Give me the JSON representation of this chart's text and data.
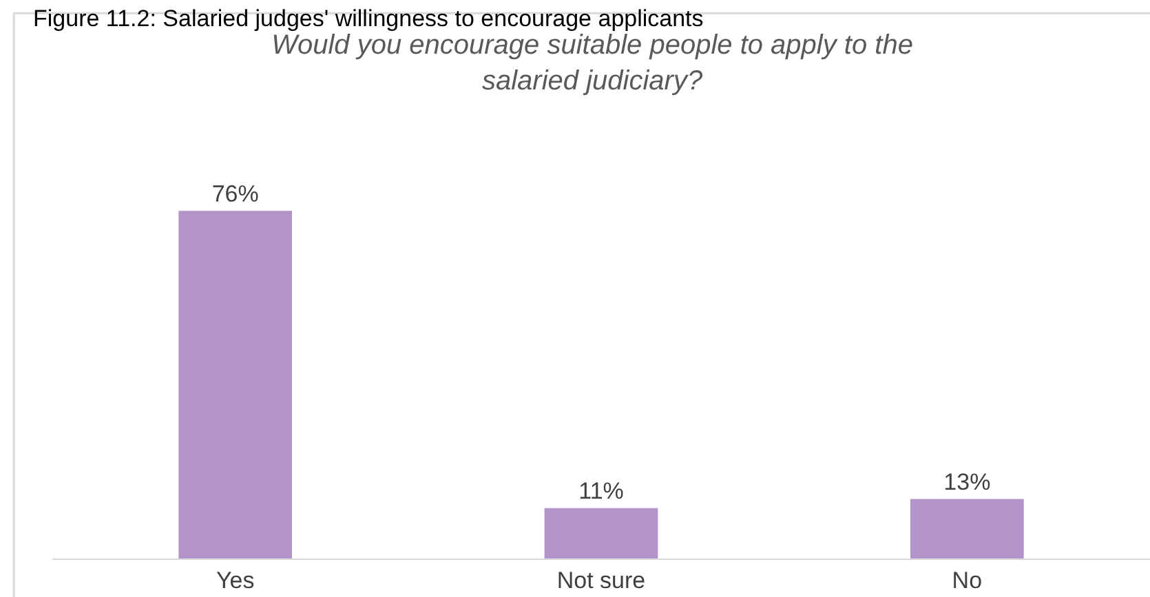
{
  "chart_data": {
    "type": "bar",
    "title": "Would you encourage suitable people to apply to the salaried judiciary?",
    "annotations": [
      "Figure 11.2: Salaried judges' willingness to encourage applicants"
    ],
    "categories": [
      "Yes",
      "Not sure",
      "No"
    ],
    "values": [
      76,
      11,
      13
    ],
    "color": "#b294cb",
    "data_labels": true,
    "value_labels": [
      "76%",
      "11%",
      "13%"
    ]
  }
}
